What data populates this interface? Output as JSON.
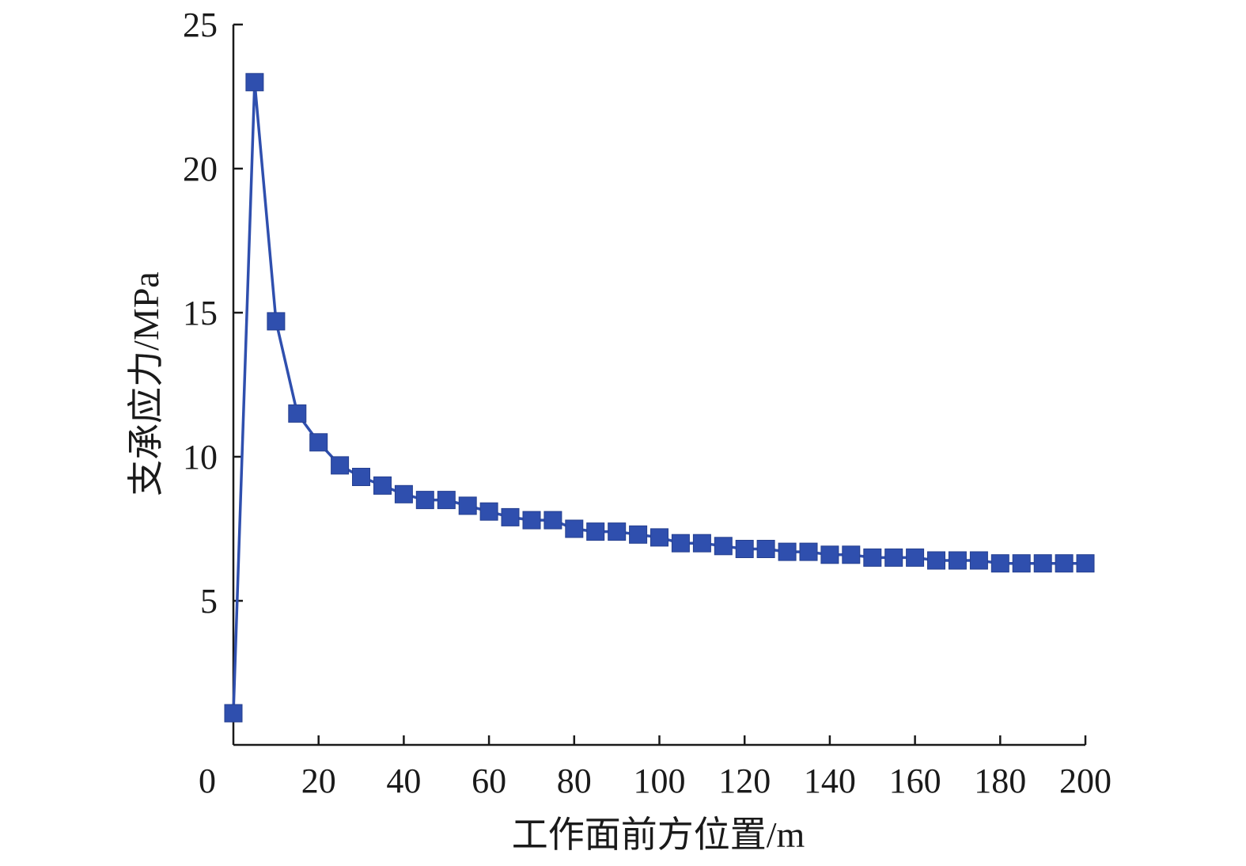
{
  "chart_data": {
    "type": "line",
    "title": "",
    "xlabel": "工作面前方位置/m",
    "ylabel": "支承应力/MPa",
    "xlim": [
      0,
      200
    ],
    "ylim": [
      0,
      25
    ],
    "x_ticks": [
      "0",
      "20",
      "40",
      "60",
      "80",
      "100",
      "120",
      "140",
      "160",
      "180",
      "200"
    ],
    "y_ticks": [
      "5",
      "10",
      "15",
      "20",
      "25"
    ],
    "grid": false,
    "marker": "square",
    "color": "#2f4fae",
    "series": [
      {
        "name": "",
        "x": [
          0,
          5,
          10,
          15,
          20,
          25,
          30,
          35,
          40,
          45,
          50,
          55,
          60,
          65,
          70,
          75,
          80,
          85,
          90,
          95,
          100,
          105,
          110,
          115,
          120,
          125,
          130,
          135,
          140,
          145,
          150,
          155,
          160,
          165,
          170,
          175,
          180,
          185,
          190,
          195,
          200
        ],
        "values": [
          1.1,
          23.0,
          14.7,
          11.5,
          10.5,
          9.7,
          9.3,
          9.0,
          8.7,
          8.5,
          8.5,
          8.3,
          8.1,
          7.9,
          7.8,
          7.8,
          7.5,
          7.4,
          7.4,
          7.3,
          7.2,
          7.0,
          7.0,
          6.9,
          6.8,
          6.8,
          6.7,
          6.7,
          6.6,
          6.6,
          6.5,
          6.5,
          6.5,
          6.4,
          6.4,
          6.4,
          6.3,
          6.3,
          6.3,
          6.3,
          6.3
        ]
      }
    ]
  }
}
